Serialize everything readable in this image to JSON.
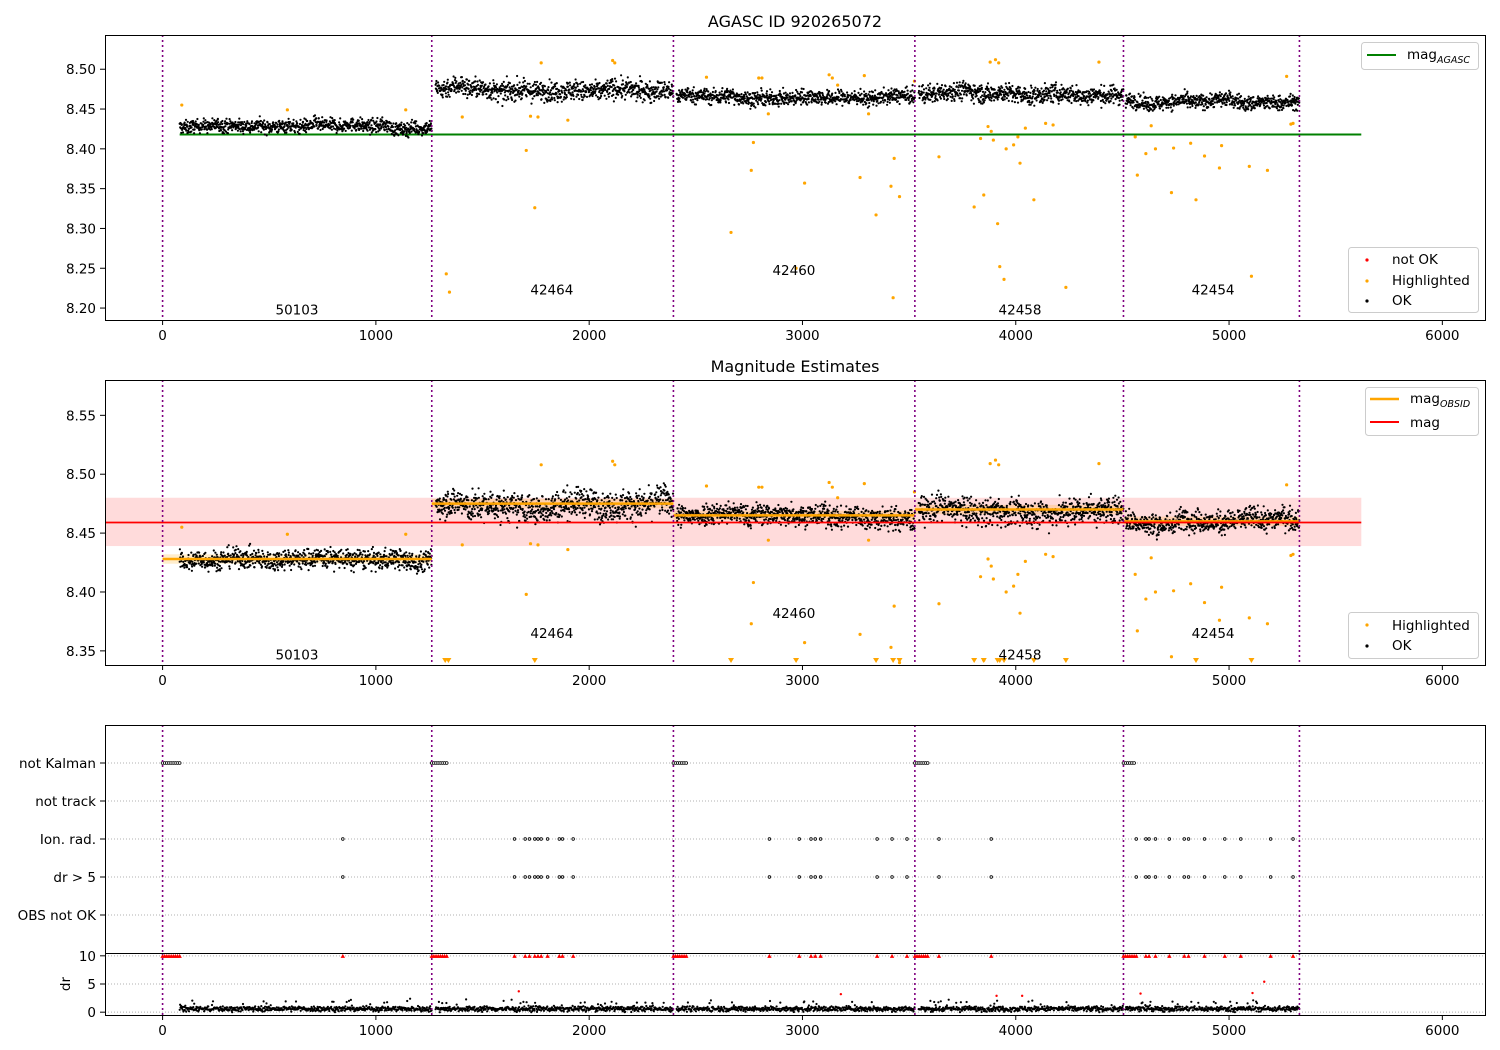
{
  "chart_data": [
    {
      "type": "scatter",
      "title": "AGASC ID 920265072",
      "xlim": [
        -270,
        6200
      ],
      "ylim": [
        8.185,
        8.543
      ],
      "xticks": [
        0,
        1000,
        2000,
        3000,
        4000,
        5000,
        6000
      ],
      "xtick_labels": [
        "0",
        "1000",
        "2000",
        "3000",
        "4000",
        "5000",
        "6000"
      ],
      "yticks": [
        8.2,
        8.25,
        8.3,
        8.35,
        8.4,
        8.45,
        8.5
      ],
      "ytick_labels": [
        "8.20",
        "8.25",
        "8.30",
        "8.35",
        "8.40",
        "8.45",
        "8.50"
      ],
      "obsid_boundaries": [
        0,
        1262,
        2395,
        3527,
        4505,
        5330
      ],
      "obsid_labels": [
        {
          "text": "50103",
          "x": 630,
          "y": 8.198
        },
        {
          "text": "42464",
          "x": 1825,
          "y": 8.223
        },
        {
          "text": "42460",
          "x": 2960,
          "y": 8.248
        },
        {
          "text": "42458",
          "x": 4020,
          "y": 8.198
        },
        {
          "text": "42454",
          "x": 4925,
          "y": 8.223
        }
      ],
      "segments": [
        {
          "obsid": "50103",
          "x_start": 80,
          "x_end": 1262,
          "mean": 8.427,
          "noise": 0.008
        },
        {
          "obsid": "42464",
          "x_start": 1280,
          "x_end": 2395,
          "mean": 8.475,
          "noise": 0.012
        },
        {
          "obsid": "42460",
          "x_start": 2410,
          "x_end": 3527,
          "mean": 8.465,
          "noise": 0.009
        },
        {
          "obsid": "42458",
          "x_start": 3545,
          "x_end": 4505,
          "mean": 8.47,
          "noise": 0.011
        },
        {
          "obsid": "42454",
          "x_start": 4515,
          "x_end": 5330,
          "mean": 8.46,
          "noise": 0.009
        }
      ],
      "lines": [
        {
          "name": "mag_AGASC",
          "y": 8.418,
          "x_start": 80,
          "x_end": 5620,
          "color": "#008000"
        }
      ],
      "highlighted_points": [
        {
          "x": 90,
          "y": 8.455
        },
        {
          "x": 585,
          "y": 8.449
        },
        {
          "x": 1140,
          "y": 8.449
        },
        {
          "x": 1330,
          "y": 8.243
        },
        {
          "x": 1345,
          "y": 8.22
        },
        {
          "x": 1405,
          "y": 8.44
        },
        {
          "x": 1705,
          "y": 8.398
        },
        {
          "x": 1725,
          "y": 8.441
        },
        {
          "x": 1745,
          "y": 8.326
        },
        {
          "x": 1760,
          "y": 8.44
        },
        {
          "x": 1775,
          "y": 8.508
        },
        {
          "x": 1900,
          "y": 8.436
        },
        {
          "x": 2110,
          "y": 8.511
        },
        {
          "x": 2120,
          "y": 8.508
        },
        {
          "x": 2550,
          "y": 8.49
        },
        {
          "x": 2665,
          "y": 8.295
        },
        {
          "x": 2760,
          "y": 8.373
        },
        {
          "x": 2770,
          "y": 8.408
        },
        {
          "x": 2795,
          "y": 8.489
        },
        {
          "x": 2810,
          "y": 8.489
        },
        {
          "x": 2840,
          "y": 8.444
        },
        {
          "x": 2970,
          "y": 8.25
        },
        {
          "x": 3010,
          "y": 8.357
        },
        {
          "x": 3125,
          "y": 8.493
        },
        {
          "x": 3140,
          "y": 8.489
        },
        {
          "x": 3165,
          "y": 8.48
        },
        {
          "x": 3270,
          "y": 8.364
        },
        {
          "x": 3290,
          "y": 8.492
        },
        {
          "x": 3310,
          "y": 8.444
        },
        {
          "x": 3345,
          "y": 8.317
        },
        {
          "x": 3415,
          "y": 8.353
        },
        {
          "x": 3425,
          "y": 8.213
        },
        {
          "x": 3430,
          "y": 8.388
        },
        {
          "x": 3455,
          "y": 8.34
        },
        {
          "x": 3525,
          "y": 8.485
        },
        {
          "x": 3640,
          "y": 8.39
        },
        {
          "x": 3805,
          "y": 8.327
        },
        {
          "x": 3835,
          "y": 8.413
        },
        {
          "x": 3850,
          "y": 8.342
        },
        {
          "x": 3870,
          "y": 8.428
        },
        {
          "x": 3880,
          "y": 8.509
        },
        {
          "x": 3885,
          "y": 8.422
        },
        {
          "x": 3895,
          "y": 8.411
        },
        {
          "x": 3905,
          "y": 8.512
        },
        {
          "x": 3915,
          "y": 8.306
        },
        {
          "x": 3920,
          "y": 8.508
        },
        {
          "x": 3925,
          "y": 8.252
        },
        {
          "x": 3945,
          "y": 8.236
        },
        {
          "x": 3955,
          "y": 8.4
        },
        {
          "x": 3990,
          "y": 8.405
        },
        {
          "x": 4010,
          "y": 8.415
        },
        {
          "x": 4020,
          "y": 8.382
        },
        {
          "x": 4045,
          "y": 8.426
        },
        {
          "x": 4085,
          "y": 8.336
        },
        {
          "x": 4140,
          "y": 8.432
        },
        {
          "x": 4175,
          "y": 8.43
        },
        {
          "x": 4235,
          "y": 8.226
        },
        {
          "x": 4390,
          "y": 8.509
        },
        {
          "x": 4560,
          "y": 8.415
        },
        {
          "x": 4570,
          "y": 8.367
        },
        {
          "x": 4610,
          "y": 8.394
        },
        {
          "x": 4635,
          "y": 8.429
        },
        {
          "x": 4655,
          "y": 8.4
        },
        {
          "x": 4730,
          "y": 8.345
        },
        {
          "x": 4740,
          "y": 8.401
        },
        {
          "x": 4820,
          "y": 8.407
        },
        {
          "x": 4845,
          "y": 8.336
        },
        {
          "x": 4885,
          "y": 8.391
        },
        {
          "x": 4955,
          "y": 8.376
        },
        {
          "x": 4965,
          "y": 8.404
        },
        {
          "x": 5095,
          "y": 8.378
        },
        {
          "x": 5105,
          "y": 8.24
        },
        {
          "x": 5180,
          "y": 8.373
        },
        {
          "x": 5270,
          "y": 8.491
        },
        {
          "x": 5290,
          "y": 8.431
        },
        {
          "x": 5300,
          "y": 8.432
        }
      ],
      "legend_placement": [
        "top-right",
        "bottom-right"
      ],
      "legend_top": [
        {
          "label": "mag",
          "sub": "AGASC",
          "kind": "line",
          "color": "#008000"
        }
      ],
      "legend_bottom": [
        {
          "label": "not OK",
          "kind": "dot",
          "color": "#ff0000"
        },
        {
          "label": "Highlighted",
          "kind": "dot",
          "color": "#ffa500"
        },
        {
          "label": "OK",
          "kind": "dot",
          "color": "#000000"
        }
      ],
      "colors": {
        "ok": "#000000",
        "highlighted": "#ffa500",
        "not_ok": "#ff0000",
        "boundary": "#800080"
      }
    },
    {
      "type": "scatter",
      "title": "Magnitude Estimates",
      "xlim": [
        -270,
        6200
      ],
      "ylim": [
        8.338,
        8.58
      ],
      "xticks": [
        0,
        1000,
        2000,
        3000,
        4000,
        5000,
        6000
      ],
      "xtick_labels": [
        "0",
        "1000",
        "2000",
        "3000",
        "4000",
        "5000",
        "6000"
      ],
      "yticks": [
        8.35,
        8.4,
        8.45,
        8.5,
        8.55
      ],
      "ytick_labels": [
        "8.35",
        "8.40",
        "8.45",
        "8.50",
        "8.55"
      ],
      "obsid_boundaries": [
        0,
        1262,
        2395,
        3527,
        4505,
        5330
      ],
      "obsid_labels": [
        {
          "text": "50103",
          "x": 630,
          "y": 8.347
        },
        {
          "text": "42464",
          "x": 1825,
          "y": 8.365
        },
        {
          "text": "42460",
          "x": 2960,
          "y": 8.382
        },
        {
          "text": "42458",
          "x": 4020,
          "y": 8.347
        },
        {
          "text": "42454",
          "x": 4925,
          "y": 8.365
        }
      ],
      "mag_band": {
        "x_start": -270,
        "x_end": 5620,
        "y_low": 8.439,
        "y_high": 8.48,
        "color": "#ffcccc"
      },
      "mag_line": {
        "name": "mag",
        "y": 8.459,
        "x_start": -270,
        "x_end": 5620,
        "color": "#ff0000"
      },
      "mag_obsid": [
        {
          "obsid": "50103",
          "x_start": 0,
          "x_end": 1262,
          "y": 8.428
        },
        {
          "obsid": "42464",
          "x_start": 1262,
          "x_end": 2395,
          "y": 8.475
        },
        {
          "obsid": "42460",
          "x_start": 2395,
          "x_end": 3527,
          "y": 8.465
        },
        {
          "obsid": "42458",
          "x_start": 3527,
          "x_end": 4505,
          "y": 8.47
        },
        {
          "obsid": "42454",
          "x_start": 4505,
          "x_end": 5330,
          "y": 8.46
        }
      ],
      "mag_obsid_band_halfwidth": 0.004,
      "offscale_markers_x": [
        1325,
        1340,
        1745,
        2665,
        2970,
        3345,
        3425,
        3455,
        3805,
        3850,
        3915,
        3925,
        3945,
        4085,
        4235,
        4845,
        5105
      ],
      "legend_placement": [
        "top-right",
        "bottom-right"
      ],
      "legend_top": [
        {
          "label": "mag",
          "sub": "OBSID",
          "kind": "line",
          "color": "#ffa500"
        },
        {
          "label": "mag",
          "kind": "line",
          "color": "#ff0000"
        }
      ],
      "legend_bottom": [
        {
          "label": "Highlighted",
          "kind": "dot",
          "color": "#ffa500"
        },
        {
          "label": "OK",
          "kind": "dot",
          "color": "#000000"
        }
      ]
    },
    {
      "type": "scatter",
      "xlim": [
        -270,
        6200
      ],
      "categories": [
        "not Kalman",
        "not track",
        "Ion. rad.",
        "dr > 5",
        "OBS not OK"
      ],
      "flags": {
        "not Kalman": [
          [
            0,
            80
          ],
          [
            1262,
            1340
          ],
          [
            2395,
            2460
          ],
          [
            3527,
            3590
          ],
          [
            4505,
            4555
          ]
        ],
        "Ion. rad.": [
          845,
          1650,
          1700,
          1720,
          1745,
          1760,
          1775,
          1805,
          1860,
          1875,
          1925,
          2845,
          2985,
          3040,
          3060,
          3085,
          3350,
          3420,
          3490,
          3640,
          3885,
          4565,
          4610,
          4625,
          4655,
          4720,
          4790,
          4810,
          4885,
          4980,
          5055,
          5195,
          5300
        ],
        "dr > 5": [
          845,
          1650,
          1700,
          1720,
          1745,
          1760,
          1775,
          1805,
          1860,
          1875,
          1925,
          2845,
          2985,
          3040,
          3060,
          3085,
          3350,
          3420,
          3490,
          3640,
          3885,
          4565,
          4610,
          4625,
          4655,
          4720,
          4790,
          4810,
          4885,
          4980,
          5055,
          5195,
          5300
        ]
      },
      "dr_panel": {
        "ylabel": "dr",
        "ylim": [
          -0.5,
          10.5
        ],
        "yticks": [
          0,
          5,
          10
        ],
        "ytick_labels": [
          "0",
          "5",
          "10"
        ],
        "clipped_at": 10,
        "xtick_labels": [
          "0",
          "1000",
          "2000",
          "3000",
          "4000",
          "5000",
          "6000"
        ],
        "scattered_dr": [
          {
            "x": 1670,
            "y": 3.7
          },
          {
            "x": 3180,
            "y": 3.2
          },
          {
            "x": 3910,
            "y": 2.9
          },
          {
            "x": 4030,
            "y": 2.9
          },
          {
            "x": 4585,
            "y": 3.3
          },
          {
            "x": 5110,
            "y": 3.4
          },
          {
            "x": 5165,
            "y": 5.4
          }
        ]
      }
    }
  ]
}
